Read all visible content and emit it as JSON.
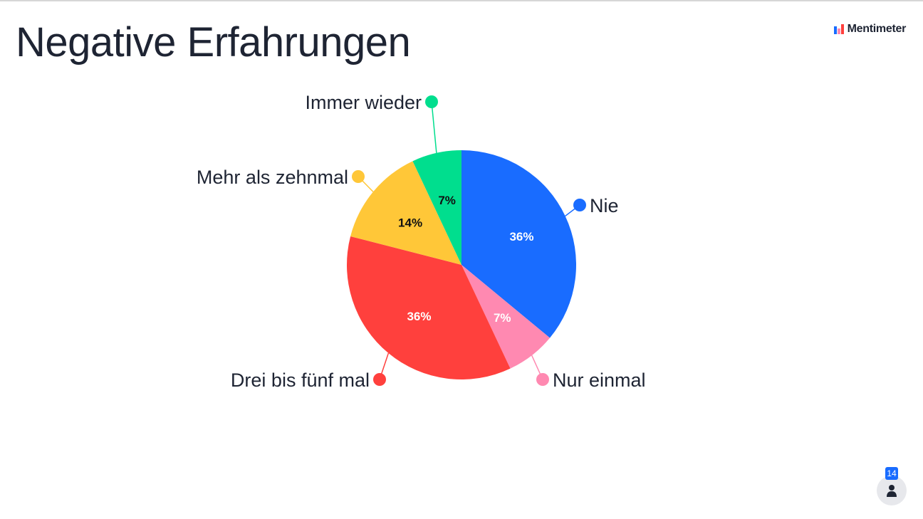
{
  "slide": {
    "title": "Negative Erfahrungen",
    "brand": "Mentimeter",
    "participant_count": "14",
    "icons": {
      "brand": "mentimeter-logo-icon",
      "participants": "person-icon"
    }
  },
  "chart_data": {
    "type": "pie",
    "categories": [
      "Nie",
      "Nur einmal",
      "Drei bis fünf mal",
      "Mehr als zehnmal",
      "Immer wieder"
    ],
    "values": [
      36,
      7,
      36,
      14,
      7
    ],
    "value_labels": [
      "36%",
      "7%",
      "36%",
      "14%",
      "7%"
    ],
    "colors": [
      "#196cff",
      "#ff89b1",
      "#ff403d",
      "#ffc738",
      "#00de8e"
    ],
    "value_label_colors": [
      "#ffffff",
      "#ffffff",
      "#ffffff",
      "#101010",
      "#101010"
    ]
  }
}
